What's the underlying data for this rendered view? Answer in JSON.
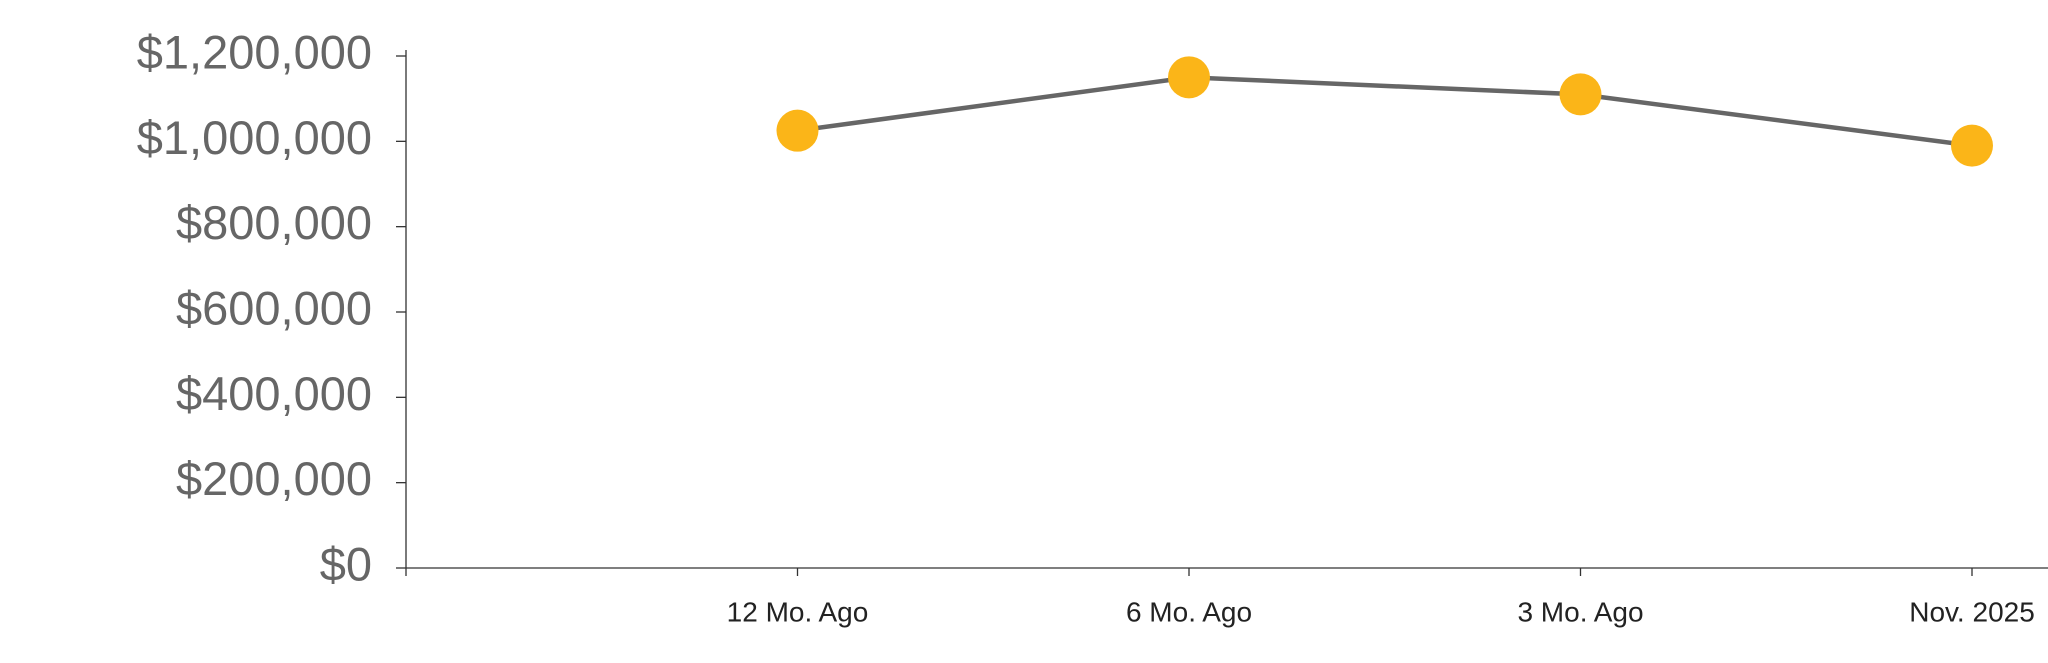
{
  "chart_data": {
    "type": "line",
    "categories": [
      "12 Mo. Ago",
      "6 Mo. Ago",
      "3 Mo. Ago",
      "Nov. 2025"
    ],
    "values": [
      1025000,
      1150000,
      1110000,
      990000
    ],
    "color": "#666666",
    "marker_color": "#fbb518",
    "ylim": [
      0,
      1200000
    ],
    "yticks": [
      {
        "value": 0,
        "label": "$0"
      },
      {
        "value": 200000,
        "label": "$200,000"
      },
      {
        "value": 400000,
        "label": "$400,000"
      },
      {
        "value": 600000,
        "label": "$600,000"
      },
      {
        "value": 800000,
        "label": "$800,000"
      },
      {
        "value": 1000000,
        "label": "$1,000,000"
      },
      {
        "value": 1200000,
        "label": "$1,200,000"
      }
    ],
    "grid": false
  }
}
